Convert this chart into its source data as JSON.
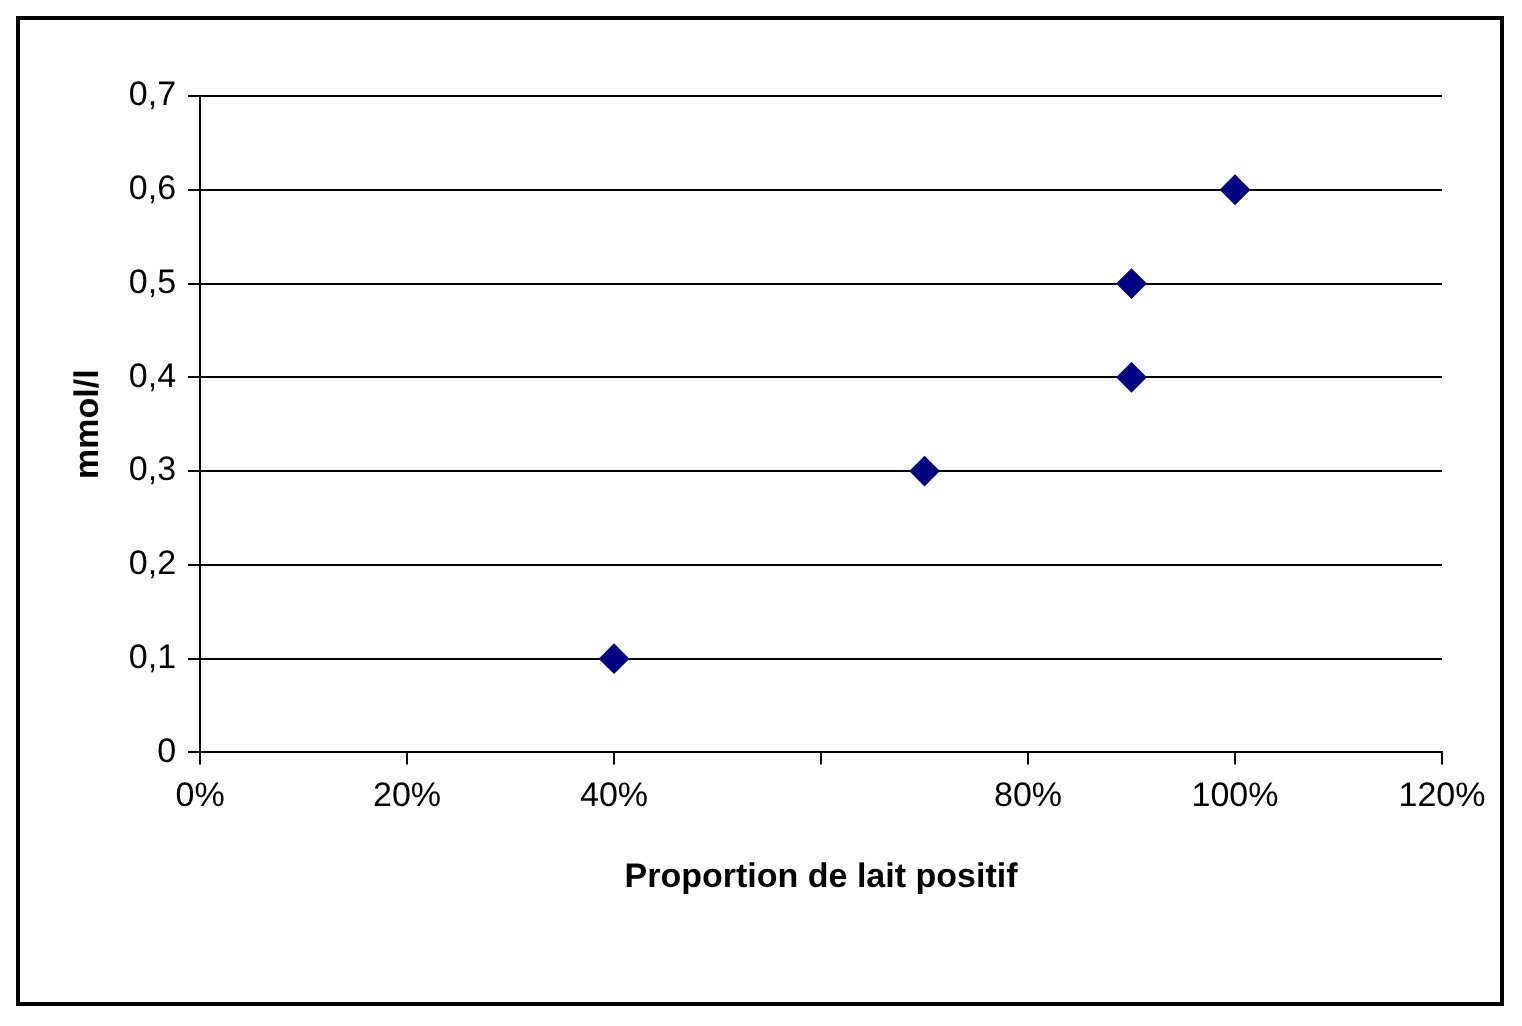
{
  "chart_data": {
    "type": "scatter",
    "xlabel": "Proportion de lait positif",
    "ylabel": "mmol/l",
    "x": [
      40,
      70,
      90,
      90,
      100
    ],
    "series": [
      {
        "color": "#000080",
        "values": [
          0.1,
          0.3,
          0.5,
          0.4,
          0.6
        ]
      }
    ],
    "xlim": [
      0,
      120
    ],
    "xticks": [
      {
        "value": 0,
        "label": "0%"
      },
      {
        "value": 20,
        "label": "20%"
      },
      {
        "value": 40,
        "label": "40%"
      },
      {
        "value": 60,
        "label": null
      },
      {
        "value": 80,
        "label": "80%"
      },
      {
        "value": 100,
        "label": "100%"
      },
      {
        "value": 120,
        "label": "120%"
      }
    ],
    "ylim": [
      0,
      0.7
    ],
    "yticks": [
      0,
      {
        "value": 0.1,
        "label": "0,1"
      },
      {
        "value": 0.2,
        "label": "0,2"
      },
      {
        "value": 0.3,
        "label": "0,3"
      },
      {
        "value": 0.4,
        "label": "0,4"
      },
      {
        "value": 0.5,
        "label": "0,5"
      },
      {
        "value": 0.6,
        "label": "0,6"
      },
      {
        "value": 0.7,
        "label": "0,7"
      }
    ],
    "grid": "y",
    "legend": false,
    "marker": "diamond"
  }
}
